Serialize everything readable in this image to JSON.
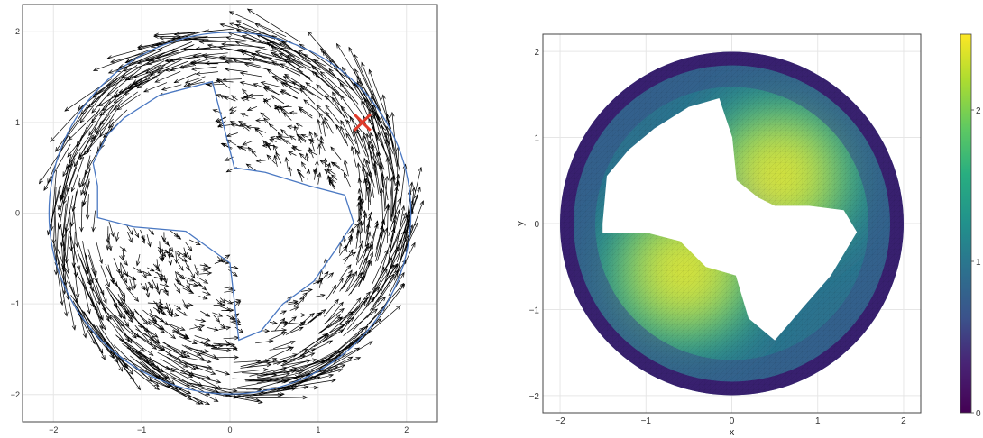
{
  "chart_data": [
    {
      "type": "quiver",
      "title": "",
      "xlabel": "",
      "ylabel": "",
      "xlim": [
        -2.35,
        2.35
      ],
      "ylim": [
        -2.3,
        2.3
      ],
      "xticks": [
        -2,
        -1,
        0,
        1,
        2
      ],
      "yticks": [
        -2,
        -1,
        0,
        1,
        2
      ],
      "xtick_labels": [
        "−2",
        "−1",
        "0",
        "1",
        "2"
      ],
      "ytick_labels": [
        "−2",
        "−1",
        "0",
        "1",
        "2"
      ],
      "grid": true,
      "domain": {
        "outer_radius": 2.05,
        "inner_boundary": [
          [
            -1.5,
            0.3
          ],
          [
            -1.55,
            0.55
          ],
          [
            -1.4,
            0.85
          ],
          [
            -1.2,
            1.05
          ],
          [
            -0.8,
            1.3
          ],
          [
            -0.2,
            1.45
          ],
          [
            0.05,
            0.5
          ],
          [
            0.4,
            0.45
          ],
          [
            0.9,
            0.3
          ],
          [
            1.3,
            0.2
          ],
          [
            1.4,
            -0.1
          ],
          [
            1.2,
            -0.4
          ],
          [
            0.95,
            -0.75
          ],
          [
            0.6,
            -1.0
          ],
          [
            0.35,
            -1.3
          ],
          [
            0.1,
            -1.4
          ],
          [
            0.0,
            -0.55
          ],
          [
            -0.5,
            -0.2
          ],
          [
            -1.1,
            -0.15
          ],
          [
            -1.5,
            -0.05
          ]
        ]
      },
      "marker": {
        "x": 1.5,
        "y": 1.0,
        "symbol": "×",
        "color": "#e03a2a"
      },
      "field": "counter-clockwise rotation, magnitude increasing with radius",
      "colors": {
        "arrows": "#000000",
        "boundary": "#4a78c2",
        "marker": "#e03a2a"
      }
    },
    {
      "type": "heatmap",
      "title": "",
      "xlabel": "x",
      "ylabel": "y",
      "xlim": [
        -2.2,
        2.2
      ],
      "ylim": [
        -2.2,
        2.2
      ],
      "xticks": [
        -2,
        -1,
        0,
        1,
        2
      ],
      "yticks": [
        -2,
        -1,
        0,
        1,
        2
      ],
      "xtick_labels": [
        "−2",
        "−1",
        "0",
        "1",
        "2"
      ],
      "ytick_labels": [
        "−2",
        "−1",
        "0",
        "1",
        "2"
      ],
      "colorbar": {
        "min": 0,
        "max": 2.5,
        "ticks": [
          0,
          1,
          2
        ],
        "tick_labels": [
          "0",
          "1",
          "2"
        ],
        "colormap": "viridis"
      },
      "domain": {
        "outer_radius": 2.0,
        "hole_polygon": [
          [
            -1.5,
            0.0
          ],
          [
            -1.45,
            0.55
          ],
          [
            -1.2,
            0.85
          ],
          [
            -0.9,
            1.1
          ],
          [
            -0.5,
            1.35
          ],
          [
            -0.15,
            1.45
          ],
          [
            0.0,
            1.0
          ],
          [
            0.05,
            0.5
          ],
          [
            0.3,
            0.3
          ],
          [
            0.5,
            0.2
          ],
          [
            0.9,
            0.2
          ],
          [
            1.3,
            0.15
          ],
          [
            1.45,
            -0.1
          ],
          [
            1.3,
            -0.35
          ],
          [
            1.15,
            -0.6
          ],
          [
            0.8,
            -1.0
          ],
          [
            0.5,
            -1.35
          ],
          [
            0.2,
            -1.1
          ],
          [
            0.05,
            -0.6
          ],
          [
            -0.3,
            -0.5
          ],
          [
            -0.6,
            -0.2
          ],
          [
            -1.0,
            -0.1
          ],
          [
            -1.5,
            -0.1
          ]
        ]
      },
      "peaks": [
        {
          "x": 0.55,
          "y": 0.55,
          "value": 2.4
        },
        {
          "x": -0.55,
          "y": -0.55,
          "value": 2.4
        }
      ],
      "grid": true
    }
  ]
}
